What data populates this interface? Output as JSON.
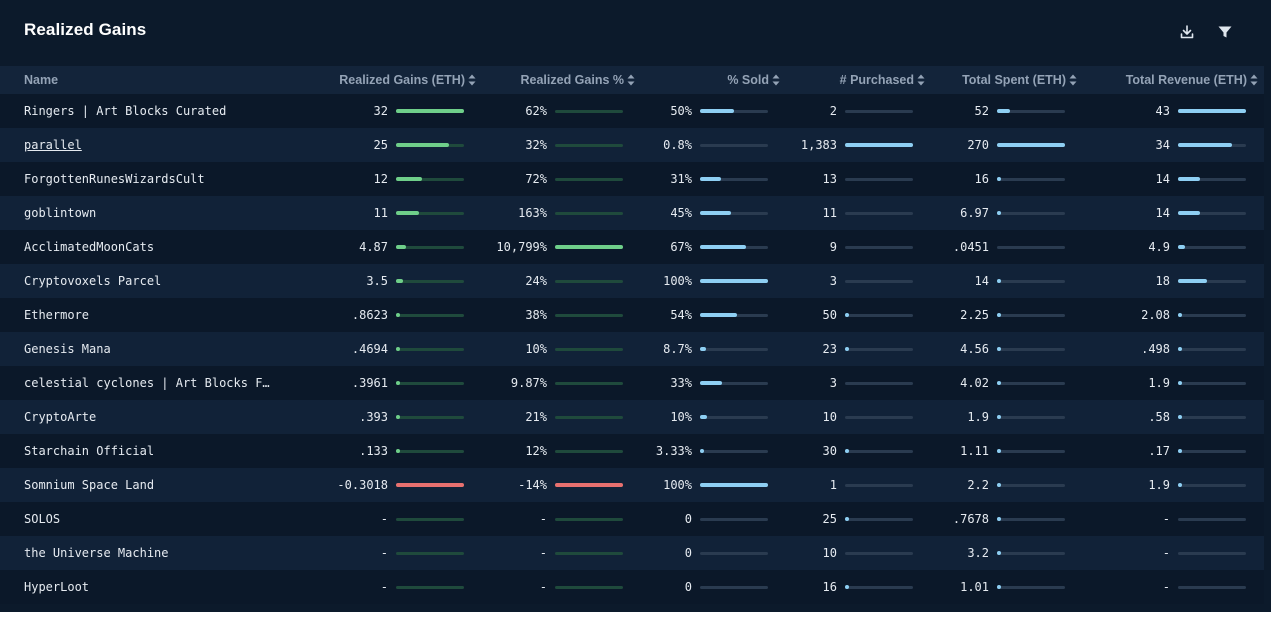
{
  "title": "Realized Gains",
  "tools": {
    "download_icon": "download-icon",
    "filter_icon": "filter-icon"
  },
  "columns": [
    "Name",
    "Realized Gains (ETH)",
    "Realized Gains %",
    "% Sold",
    "# Purchased",
    "Total Spent (ETH)",
    "Total Revenue (ETH)"
  ],
  "colors": {
    "background": "#0c1a2b",
    "header_row": "#13243a",
    "row_odd": "#0b1829",
    "row_even": "#112238",
    "gain_bar": "#6fcf8a",
    "gain_track": "#1f4a3c",
    "loss_bar": "#e8706f",
    "blue_bar": "#8ecff3",
    "gray_track": "#2a3b50"
  },
  "rows": [
    {
      "name": "Ringers | Art Blocks Curated",
      "link": false,
      "gains": "32",
      "gains_frac": 1.0,
      "gains_neg": false,
      "gains_pct": "62%",
      "gains_pct_frac": 0.0,
      "gains_pct_neg": false,
      "sold": "50%",
      "sold_frac": 0.5,
      "purchased": "2",
      "purchased_frac": 0.0,
      "spent": "52",
      "spent_frac": 0.19,
      "revenue": "43",
      "revenue_frac": 1.0
    },
    {
      "name": "parallel",
      "link": true,
      "gains": "25",
      "gains_frac": 0.78,
      "gains_neg": false,
      "gains_pct": "32%",
      "gains_pct_frac": 0.0,
      "gains_pct_neg": false,
      "sold": "0.8%",
      "sold_frac": 0.0,
      "purchased": "1,383",
      "purchased_frac": 1.0,
      "spent": "270",
      "spent_frac": 1.0,
      "revenue": "34",
      "revenue_frac": 0.79
    },
    {
      "name": "ForgottenRunesWizardsCult",
      "link": false,
      "gains": "12",
      "gains_frac": 0.375,
      "gains_neg": false,
      "gains_pct": "72%",
      "gains_pct_frac": 0.0,
      "gains_pct_neg": false,
      "sold": "31%",
      "sold_frac": 0.31,
      "purchased": "13",
      "purchased_frac": 0.0,
      "spent": "16",
      "spent_frac": 0.06,
      "revenue": "14",
      "revenue_frac": 0.33
    },
    {
      "name": "goblintown",
      "link": false,
      "gains": "11",
      "gains_frac": 0.34,
      "gains_neg": false,
      "gains_pct": "163%",
      "gains_pct_frac": 0.0,
      "gains_pct_neg": false,
      "sold": "45%",
      "sold_frac": 0.45,
      "purchased": "11",
      "purchased_frac": 0.0,
      "spent": "6.97",
      "spent_frac": 0.026,
      "revenue": "14",
      "revenue_frac": 0.33
    },
    {
      "name": "AcclimatedMoonCats",
      "link": false,
      "gains": "4.87",
      "gains_frac": 0.15,
      "gains_neg": false,
      "gains_pct": "10,799%",
      "gains_pct_frac": 1.0,
      "gains_pct_neg": false,
      "sold": "67%",
      "sold_frac": 0.67,
      "purchased": "9",
      "purchased_frac": 0.0,
      "spent": ".0451",
      "spent_frac": 0.0,
      "revenue": "4.9",
      "revenue_frac": 0.11
    },
    {
      "name": "Cryptovoxels Parcel",
      "link": false,
      "gains": "3.5",
      "gains_frac": 0.11,
      "gains_neg": false,
      "gains_pct": "24%",
      "gains_pct_frac": 0.0,
      "gains_pct_neg": false,
      "sold": "100%",
      "sold_frac": 1.0,
      "purchased": "3",
      "purchased_frac": 0.0,
      "spent": "14",
      "spent_frac": 0.052,
      "revenue": "18",
      "revenue_frac": 0.42
    },
    {
      "name": "Ethermore",
      "link": false,
      "gains": ".8623",
      "gains_frac": 0.027,
      "gains_neg": false,
      "gains_pct": "38%",
      "gains_pct_frac": 0.0,
      "gains_pct_neg": false,
      "sold": "54%",
      "sold_frac": 0.54,
      "purchased": "50",
      "purchased_frac": 0.036,
      "spent": "2.25",
      "spent_frac": 0.008,
      "revenue": "2.08",
      "revenue_frac": 0.048
    },
    {
      "name": "Genesis Mana",
      "link": false,
      "gains": ".4694",
      "gains_frac": 0.015,
      "gains_neg": false,
      "gains_pct": "10%",
      "gains_pct_frac": 0.0,
      "gains_pct_neg": false,
      "sold": "8.7%",
      "sold_frac": 0.087,
      "purchased": "23",
      "purchased_frac": 0.017,
      "spent": "4.56",
      "spent_frac": 0.017,
      "revenue": ".498",
      "revenue_frac": 0.012
    },
    {
      "name": "celestial cyclones | Art Blocks F…",
      "link": false,
      "gains": ".3961",
      "gains_frac": 0.012,
      "gains_neg": false,
      "gains_pct": "9.87%",
      "gains_pct_frac": 0.0,
      "gains_pct_neg": false,
      "sold": "33%",
      "sold_frac": 0.33,
      "purchased": "3",
      "purchased_frac": 0.0,
      "spent": "4.02",
      "spent_frac": 0.015,
      "revenue": "1.9",
      "revenue_frac": 0.044
    },
    {
      "name": "CryptoArte",
      "link": false,
      "gains": ".393",
      "gains_frac": 0.012,
      "gains_neg": false,
      "gains_pct": "21%",
      "gains_pct_frac": 0.0,
      "gains_pct_neg": false,
      "sold": "10%",
      "sold_frac": 0.1,
      "purchased": "10",
      "purchased_frac": 0.0,
      "spent": "1.9",
      "spent_frac": 0.007,
      "revenue": ".58",
      "revenue_frac": 0.013
    },
    {
      "name": "Starchain Official",
      "link": false,
      "gains": ".133",
      "gains_frac": 0.004,
      "gains_neg": false,
      "gains_pct": "12%",
      "gains_pct_frac": 0.0,
      "gains_pct_neg": false,
      "sold": "3.33%",
      "sold_frac": 0.033,
      "purchased": "30",
      "purchased_frac": 0.022,
      "spent": "1.11",
      "spent_frac": 0.004,
      "revenue": ".17",
      "revenue_frac": 0.004
    },
    {
      "name": "Somnium Space Land",
      "link": false,
      "gains": "-0.3018",
      "gains_frac": 1.0,
      "gains_neg": true,
      "gains_pct": "-14%",
      "gains_pct_frac": 1.0,
      "gains_pct_neg": true,
      "sold": "100%",
      "sold_frac": 1.0,
      "purchased": "1",
      "purchased_frac": 0.0,
      "spent": "2.2",
      "spent_frac": 0.008,
      "revenue": "1.9",
      "revenue_frac": 0.044
    },
    {
      "name": "SOLOS",
      "link": false,
      "gains": "-",
      "gains_frac": 0.0,
      "gains_neg": false,
      "gains_pct": "-",
      "gains_pct_frac": 0.0,
      "gains_pct_neg": false,
      "sold": "0",
      "sold_frac": 0.0,
      "purchased": "25",
      "purchased_frac": 0.018,
      "spent": ".7678",
      "spent_frac": 0.003,
      "revenue": "-",
      "revenue_frac": 0.0
    },
    {
      "name": "the Universe Machine",
      "link": false,
      "gains": "-",
      "gains_frac": 0.0,
      "gains_neg": false,
      "gains_pct": "-",
      "gains_pct_frac": 0.0,
      "gains_pct_neg": false,
      "sold": "0",
      "sold_frac": 0.0,
      "purchased": "10",
      "purchased_frac": 0.0,
      "spent": "3.2",
      "spent_frac": 0.012,
      "revenue": "-",
      "revenue_frac": 0.0
    },
    {
      "name": "HyperLoot",
      "link": false,
      "gains": "-",
      "gains_frac": 0.0,
      "gains_neg": false,
      "gains_pct": "-",
      "gains_pct_frac": 0.0,
      "gains_pct_neg": false,
      "sold": "0",
      "sold_frac": 0.0,
      "purchased": "16",
      "purchased_frac": 0.012,
      "spent": "1.01",
      "spent_frac": 0.004,
      "revenue": "-",
      "revenue_frac": 0.0
    }
  ]
}
